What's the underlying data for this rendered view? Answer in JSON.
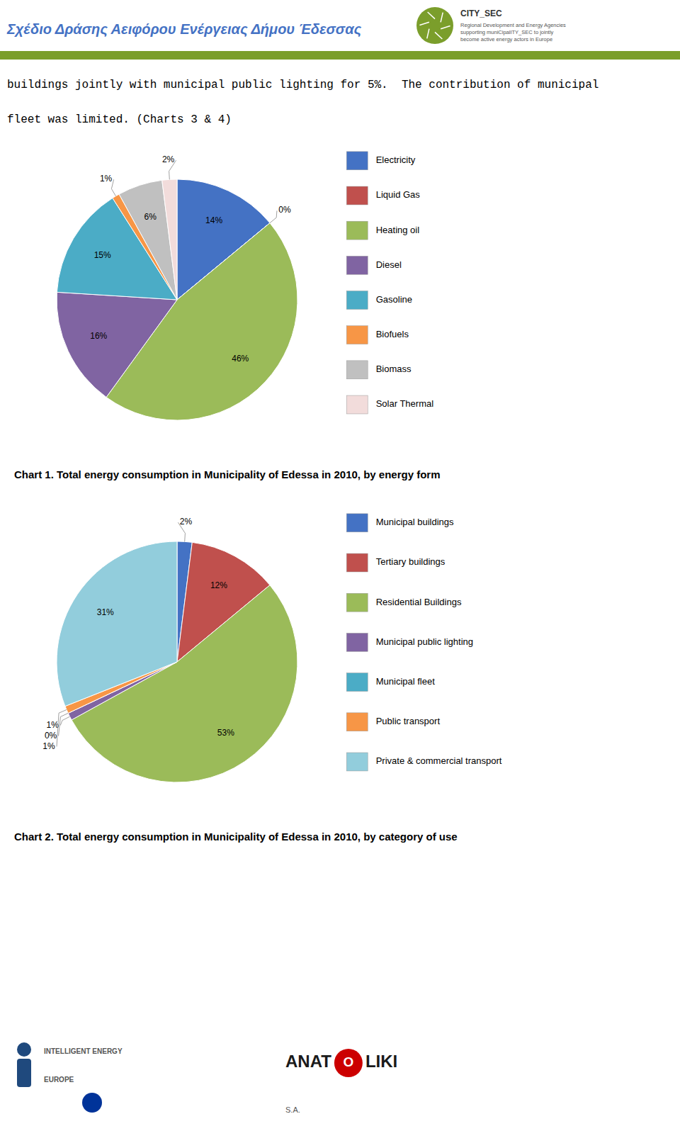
{
  "header_text": "Σχέδιο Δράσης Αειφόρου Ενέργειας Δήμου Έδεσσας",
  "logo_name": "CITY_SEC",
  "logo_tagline": [
    "Regional Development and Energy Agencies",
    "supporting muniCipalITY_SEC to jointly",
    "become active energy actors in Europe"
  ],
  "body_text": [
    "buildings jointly with municipal public lighting for 5%.  The contribution of municipal",
    "fleet was limited. (Charts 3 & 4)"
  ],
  "footer_iee": [
    "INTELLIGENT ENERGY",
    "EUROPE"
  ],
  "footer_org": [
    "ANAT",
    "O",
    "LIKI"
  ],
  "footer_org_suffix": "S.A.",
  "chart_data": [
    {
      "type": "pie",
      "title": "Chart 1.  Total energy consumption in Municipality of Edessa in 2010, by energy form",
      "categories": [
        "Electricity",
        "Liquid Gas",
        "Heating oil",
        "Diesel",
        "Gasoline",
        "Biofuels",
        "Biomass",
        "Solar Thermal"
      ],
      "values": [
        14,
        0,
        46,
        16,
        15,
        1,
        6,
        2
      ],
      "value_labels": [
        "14%",
        "0%",
        "46%",
        "16%",
        "15%",
        "1%",
        "6%",
        "2%"
      ],
      "colors": [
        "#4472C4",
        "#C0504D",
        "#9BBB59",
        "#8064A2",
        "#4BACC6",
        "#F79646",
        "#C0C0C0",
        "#F2DCDB"
      ],
      "data_labels": true,
      "legend": "right"
    },
    {
      "type": "pie",
      "title": "Chart 2.  Total energy consumption in Municipality of Edessa in 2010, by category of use",
      "categories": [
        "Municipal buildings",
        "Tertiary buildings",
        "Residential Buildings",
        "Municipal public lighting",
        "Municipal fleet",
        "Public transport",
        "Private & commercial transport"
      ],
      "values": [
        2,
        12,
        53,
        1,
        0,
        1,
        31
      ],
      "value_labels": [
        "2%",
        "12%",
        "53%",
        "1%",
        "0%",
        "1%",
        "31%"
      ],
      "colors": [
        "#4472C4",
        "#C0504D",
        "#9BBB59",
        "#8064A2",
        "#4BACC6",
        "#F79646",
        "#92CDDC"
      ],
      "data_labels": true,
      "legend": "right"
    }
  ]
}
